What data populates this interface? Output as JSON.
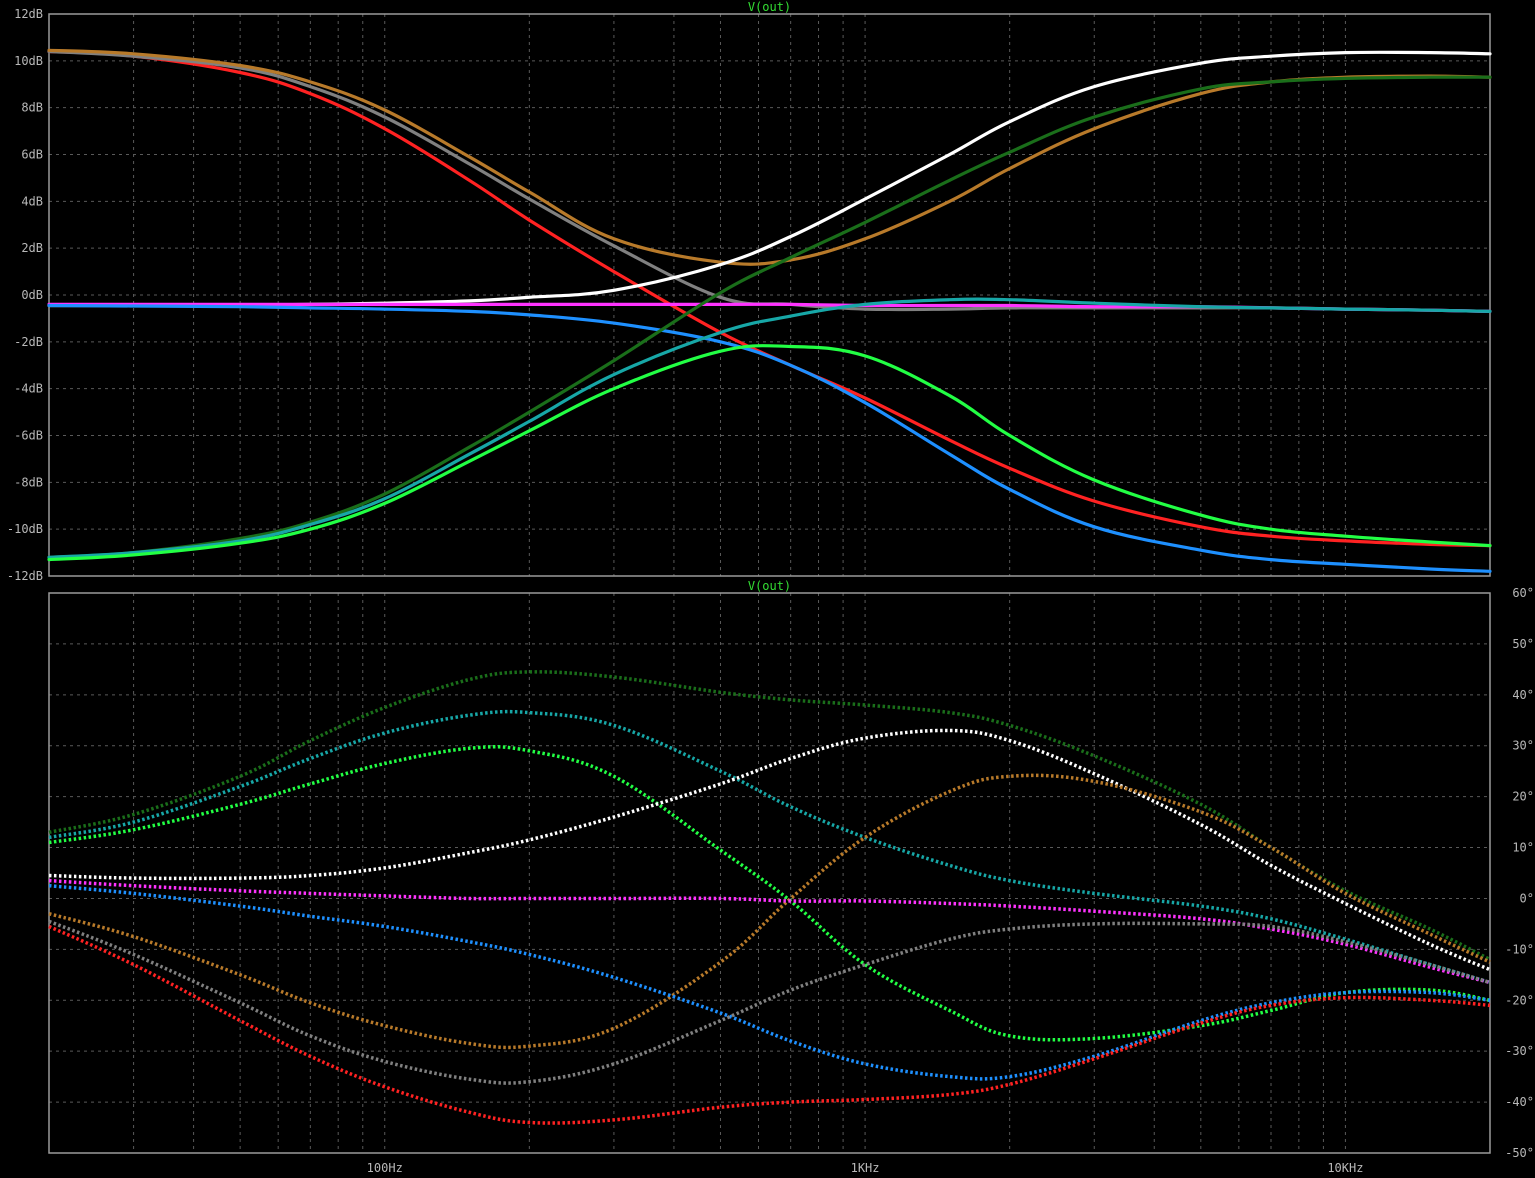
{
  "chart_data": [
    {
      "type": "line",
      "title": "V(out)",
      "x_scale": "log",
      "xlim": [
        20,
        20000
      ],
      "ylim": [
        -12,
        12
      ],
      "yunit": "dB",
      "y_ticks": [
        "12dB",
        "10dB",
        "8dB",
        "6dB",
        "4dB",
        "2dB",
        "0dB",
        "-2dB",
        "-4dB",
        "-6dB",
        "-8dB",
        "-10dB",
        "-12dB"
      ],
      "x": [
        20,
        30,
        50,
        70,
        100,
        150,
        200,
        300,
        500,
        700,
        1000,
        1500,
        2000,
        3000,
        5000,
        7000,
        10000,
        15000,
        20000
      ],
      "series": [
        {
          "color": "#ff2222",
          "values": [
            10.4,
            10.2,
            9.5,
            8.6,
            7.1,
            4.9,
            3.2,
            1.0,
            -1.6,
            -3.0,
            -4.4,
            -6.2,
            -7.4,
            -8.8,
            -9.9,
            -10.3,
            -10.5,
            -10.65,
            -10.7
          ]
        },
        {
          "color": "#808080",
          "values": [
            10.4,
            10.2,
            9.7,
            8.9,
            7.6,
            5.6,
            4.1,
            2.1,
            -0.1,
            -0.4,
            -0.6,
            -0.6,
            -0.55,
            -0.55,
            -0.55,
            -0.55,
            -0.6,
            -0.65,
            -0.7
          ]
        },
        {
          "color": "#b87a2a",
          "values": [
            10.45,
            10.3,
            9.8,
            9.1,
            7.9,
            5.9,
            4.4,
            2.4,
            1.4,
            1.5,
            2.4,
            4.0,
            5.4,
            7.1,
            8.6,
            9.1,
            9.3,
            9.35,
            9.3
          ]
        },
        {
          "color": "#ffffff",
          "values": [
            -0.45,
            -0.45,
            -0.43,
            -0.4,
            -0.35,
            -0.25,
            -0.1,
            0.2,
            1.3,
            2.5,
            4.1,
            6.0,
            7.4,
            8.9,
            9.9,
            10.2,
            10.35,
            10.35,
            10.3
          ]
        },
        {
          "color": "#ff33ff",
          "values": [
            -0.4,
            -0.4,
            -0.4,
            -0.4,
            -0.4,
            -0.4,
            -0.4,
            -0.4,
            -0.4,
            -0.4,
            -0.45,
            -0.45,
            -0.45,
            -0.5,
            -0.5,
            -0.55,
            -0.6,
            -0.65,
            -0.7
          ]
        },
        {
          "color": "#1e90ff",
          "values": [
            -0.45,
            -0.47,
            -0.5,
            -0.55,
            -0.6,
            -0.7,
            -0.85,
            -1.2,
            -2.0,
            -3.0,
            -4.6,
            -6.8,
            -8.3,
            -9.9,
            -10.9,
            -11.3,
            -11.5,
            -11.7,
            -11.8
          ]
        },
        {
          "color": "#1a6e1a",
          "values": [
            -11.2,
            -11.0,
            -10.4,
            -9.7,
            -8.5,
            -6.5,
            -5.0,
            -2.8,
            0.1,
            1.6,
            3.1,
            4.9,
            6.1,
            7.6,
            8.8,
            9.1,
            9.25,
            9.3,
            9.3
          ]
        },
        {
          "color": "#17a7a7",
          "values": [
            -11.2,
            -11.0,
            -10.5,
            -9.8,
            -8.7,
            -6.8,
            -5.4,
            -3.4,
            -1.6,
            -0.9,
            -0.4,
            -0.2,
            -0.2,
            -0.35,
            -0.5,
            -0.55,
            -0.6,
            -0.65,
            -0.7
          ]
        },
        {
          "color": "#22ff44",
          "values": [
            -11.3,
            -11.1,
            -10.6,
            -10.0,
            -8.9,
            -7.1,
            -5.8,
            -4.0,
            -2.4,
            -2.2,
            -2.6,
            -4.3,
            -6.0,
            -7.9,
            -9.4,
            -10.0,
            -10.3,
            -10.55,
            -10.7
          ]
        }
      ]
    },
    {
      "type": "line",
      "title": "V(out)",
      "x_scale": "log",
      "xlim": [
        20,
        20000
      ],
      "ylim": [
        -50,
        60
      ],
      "yunit": "°",
      "y_ticks": [
        "60°",
        "50°",
        "40°",
        "30°",
        "20°",
        "10°",
        "0°",
        "-10°",
        "-20°",
        "-30°",
        "-40°",
        "-50°"
      ],
      "x_ticks": [
        "100Hz",
        "1KHz",
        "10KHz"
      ],
      "x": [
        20,
        30,
        50,
        70,
        100,
        150,
        200,
        300,
        500,
        700,
        1000,
        1500,
        2000,
        3000,
        5000,
        7000,
        10000,
        15000,
        20000
      ],
      "series": [
        {
          "color": "#1a6e1a",
          "values": [
            13,
            16.5,
            24,
            31,
            37.5,
            43,
            44.5,
            43.5,
            40.5,
            39,
            38,
            36.5,
            34,
            28,
            18.5,
            10,
            1.5,
            -6,
            -12
          ]
        },
        {
          "color": "#17a7a7",
          "values": [
            12,
            15,
            22,
            27.5,
            32.5,
            36,
            36.5,
            34,
            25,
            18,
            12,
            6.5,
            3.5,
            1,
            -1.5,
            -4,
            -8,
            -13,
            -16.5
          ]
        },
        {
          "color": "#22ff44",
          "values": [
            11,
            13.5,
            18.5,
            22.5,
            26.5,
            29.5,
            29,
            24,
            9.5,
            -0.5,
            -13,
            -22,
            -27,
            -27.5,
            -25,
            -22,
            -18.5,
            -18,
            -20
          ]
        },
        {
          "color": "#ffffff",
          "values": [
            4.5,
            4,
            4,
            4.5,
            6,
            9,
            11.5,
            16,
            22.5,
            27.5,
            31.5,
            33,
            31,
            24.5,
            14.5,
            6.5,
            -1,
            -9,
            -14
          ]
        },
        {
          "color": "#b87a2a",
          "values": [
            -3,
            -7.5,
            -15,
            -20.5,
            -25,
            -28.5,
            -29,
            -25.5,
            -12.5,
            0,
            12,
            21,
            24,
            23,
            17,
            10,
            1,
            -7,
            -12.5
          ]
        },
        {
          "color": "#ff33ff",
          "values": [
            3.5,
            2.5,
            1.5,
            1,
            0.5,
            0,
            0,
            0,
            0,
            -0.5,
            -0.5,
            -1,
            -1.5,
            -2.5,
            -4,
            -6,
            -9,
            -13.5,
            -16.5
          ]
        },
        {
          "color": "#1e90ff",
          "values": [
            2.5,
            1,
            -1.5,
            -3.5,
            -5.5,
            -8.5,
            -11,
            -15.5,
            -22.5,
            -28,
            -32.5,
            -35,
            -35,
            -31,
            -24,
            -20.5,
            -18.5,
            -18.5,
            -20
          ]
        },
        {
          "color": "#808080",
          "values": [
            -4.5,
            -11,
            -20.5,
            -27,
            -32,
            -35.5,
            -36,
            -32.5,
            -24,
            -18,
            -13,
            -8,
            -6,
            -5,
            -5,
            -5.5,
            -8.5,
            -13,
            -16.5
          ]
        },
        {
          "color": "#ff2222",
          "values": [
            -5.5,
            -13,
            -24,
            -31,
            -37,
            -42,
            -44,
            -43.5,
            -41,
            -40,
            -39.5,
            -38.5,
            -36.5,
            -31.5,
            -24.5,
            -21,
            -19.5,
            -20,
            -21
          ]
        }
      ]
    }
  ]
}
